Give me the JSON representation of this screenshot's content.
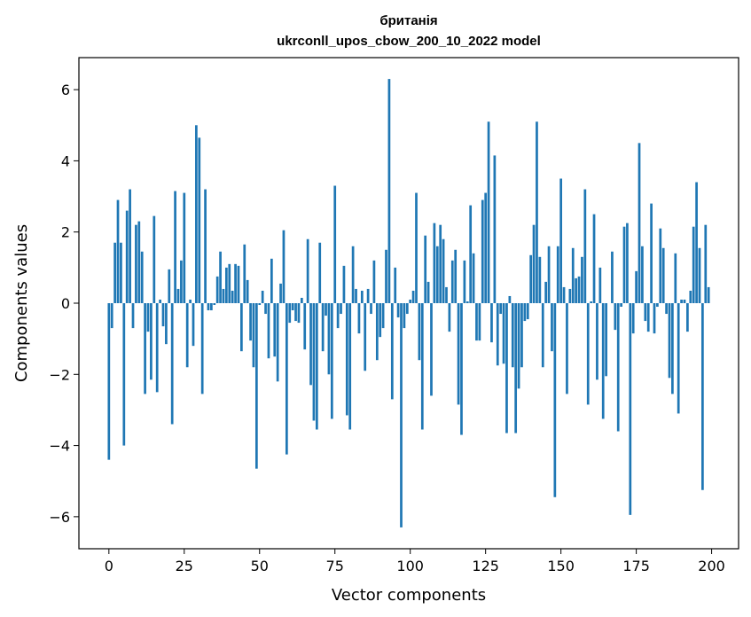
{
  "chart_data": {
    "type": "bar",
    "title": "британія",
    "subtitle": "ukrconll_upos_cbow_200_10_2022 model",
    "xlabel": "Vector components",
    "ylabel": "Components values",
    "xlim": [
      -9.95,
      208.95
    ],
    "ylim": [
      -6.9,
      6.9
    ],
    "xticks": [
      0,
      25,
      50,
      75,
      100,
      125,
      150,
      175,
      200
    ],
    "yticks": [
      -6,
      -4,
      -2,
      0,
      2,
      4,
      6
    ],
    "xtick_labels": [
      "0",
      "25",
      "50",
      "75",
      "100",
      "125",
      "150",
      "175",
      "200"
    ],
    "ytick_labels": [
      "−6",
      "−4",
      "−2",
      "0",
      "2",
      "4",
      "6"
    ],
    "grid": false,
    "bar_color": "#1f77b4",
    "x": [
      0,
      1,
      2,
      3,
      4,
      5,
      6,
      7,
      8,
      9,
      10,
      11,
      12,
      13,
      14,
      15,
      16,
      17,
      18,
      19,
      20,
      21,
      22,
      23,
      24,
      25,
      26,
      27,
      28,
      29,
      30,
      31,
      32,
      33,
      34,
      35,
      36,
      37,
      38,
      39,
      40,
      41,
      42,
      43,
      44,
      45,
      46,
      47,
      48,
      49,
      50,
      51,
      52,
      53,
      54,
      55,
      56,
      57,
      58,
      59,
      60,
      61,
      62,
      63,
      64,
      65,
      66,
      67,
      68,
      69,
      70,
      71,
      72,
      73,
      74,
      75,
      76,
      77,
      78,
      79,
      80,
      81,
      82,
      83,
      84,
      85,
      86,
      87,
      88,
      89,
      90,
      91,
      92,
      93,
      94,
      95,
      96,
      97,
      98,
      99,
      100,
      101,
      102,
      103,
      104,
      105,
      106,
      107,
      108,
      109,
      110,
      111,
      112,
      113,
      114,
      115,
      116,
      117,
      118,
      119,
      120,
      121,
      122,
      123,
      124,
      125,
      126,
      127,
      128,
      129,
      130,
      131,
      132,
      133,
      134,
      135,
      136,
      137,
      138,
      139,
      140,
      141,
      142,
      143,
      144,
      145,
      146,
      147,
      148,
      149,
      150,
      151,
      152,
      153,
      154,
      155,
      156,
      157,
      158,
      159,
      160,
      161,
      162,
      163,
      164,
      165,
      166,
      167,
      168,
      169,
      170,
      171,
      172,
      173,
      174,
      175,
      176,
      177,
      178,
      179,
      180,
      181,
      182,
      183,
      184,
      185,
      186,
      187,
      188,
      189,
      190,
      191,
      192,
      193,
      194,
      195,
      196,
      197,
      198,
      199
    ],
    "values": [
      -4.4,
      -0.7,
      1.7,
      2.9,
      1.7,
      -4.0,
      2.6,
      3.2,
      -0.7,
      2.2,
      2.3,
      1.45,
      -2.55,
      -0.8,
      -2.15,
      2.45,
      -2.5,
      0.1,
      -0.65,
      -1.15,
      0.95,
      -3.4,
      3.15,
      0.4,
      1.2,
      3.1,
      -1.8,
      0.1,
      -1.2,
      5.0,
      4.65,
      -2.55,
      3.2,
      -0.2,
      -0.2,
      -0.05,
      0.75,
      1.45,
      0.4,
      1.0,
      1.1,
      0.35,
      1.1,
      1.05,
      -1.35,
      1.65,
      0.65,
      -1.05,
      -1.8,
      -4.65,
      -0.05,
      0.35,
      -0.3,
      -1.55,
      1.25,
      -1.5,
      -2.2,
      0.55,
      2.05,
      -4.25,
      -0.55,
      -0.2,
      -0.5,
      -0.55,
      0.15,
      -1.3,
      1.8,
      -2.3,
      -3.3,
      -3.55,
      1.7,
      -1.35,
      -0.35,
      -2.0,
      -3.25,
      3.3,
      -0.7,
      -0.3,
      1.05,
      -3.15,
      -3.55,
      1.6,
      0.4,
      -0.85,
      0.35,
      -1.9,
      0.4,
      -0.3,
      1.2,
      -1.6,
      -0.95,
      -0.7,
      1.5,
      6.3,
      -2.7,
      1.0,
      -0.4,
      -6.3,
      -0.7,
      -0.3,
      0.1,
      0.35,
      3.1,
      -1.6,
      -3.55,
      1.9,
      0.6,
      -2.6,
      2.25,
      1.6,
      2.2,
      1.8,
      0.45,
      -0.8,
      1.2,
      1.5,
      -2.85,
      -3.7,
      1.2,
      0.05,
      2.75,
      1.4,
      -1.05,
      -1.05,
      2.9,
      3.1,
      5.1,
      -1.1,
      4.15,
      -1.75,
      -0.3,
      -1.7,
      -3.65,
      0.2,
      -1.8,
      -3.65,
      -2.4,
      -1.8,
      -0.5,
      -0.45,
      1.35,
      2.2,
      5.1,
      1.3,
      -1.8,
      0.6,
      1.6,
      -1.35,
      -5.45,
      1.6,
      3.5,
      0.45,
      -2.55,
      0.4,
      1.55,
      0.7,
      0.75,
      1.3,
      3.2,
      -2.85,
      0.05,
      2.5,
      -2.15,
      1.0,
      -3.25,
      -2.05,
      0.0,
      1.45,
      -0.75,
      -3.6,
      -0.1,
      2.15,
      2.25,
      -5.95,
      -0.85,
      0.9,
      4.5,
      1.6,
      -0.5,
      -0.8,
      2.8,
      -0.85,
      -0.1,
      2.1,
      1.55,
      -0.3,
      -2.1,
      -2.55,
      1.4,
      -3.1,
      0.1,
      0.1,
      -0.8,
      0.35,
      2.15,
      3.4,
      1.55,
      -5.25,
      2.2,
      0.45
    ]
  }
}
